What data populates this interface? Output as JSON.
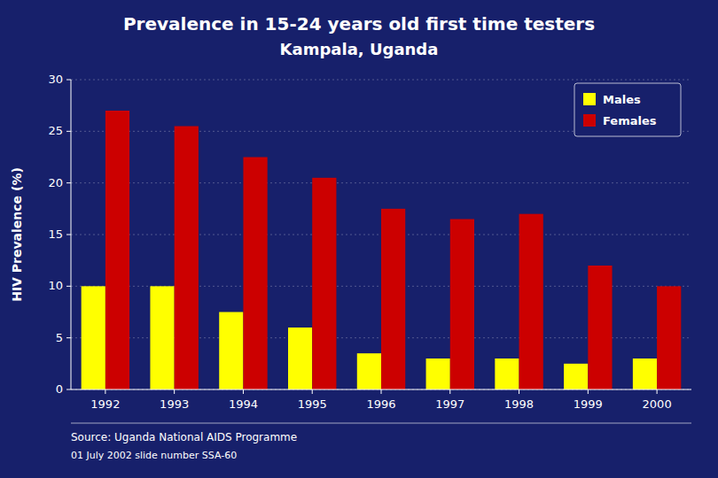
{
  "chart_data": {
    "type": "bar",
    "title": "Prevalence in 15-24 years old first time testers",
    "subtitle": "Kampala, Uganda",
    "ylabel": "HIV Prevalence (%)",
    "categories": [
      "1992",
      "1993",
      "1994",
      "1995",
      "1996",
      "1997",
      "1998",
      "1999",
      "2000"
    ],
    "series": [
      {
        "name": "Males",
        "color": "#FFFF00",
        "values": [
          10.0,
          10.0,
          7.5,
          6.0,
          3.5,
          3.0,
          3.0,
          2.5,
          3.0
        ]
      },
      {
        "name": "Females",
        "color": "#CC0000",
        "values": [
          27.0,
          25.5,
          22.5,
          20.5,
          17.5,
          16.5,
          17.0,
          12.0,
          10.0
        ]
      }
    ],
    "ylim": [
      0,
      30
    ],
    "yticks": [
      0,
      5,
      10,
      15,
      20,
      25,
      30
    ],
    "grid": true,
    "legend": "upper right",
    "annotations": [
      "Source:  Uganda National AIDS Programme",
      "01 July 2002 slide number SSA-60"
    ]
  }
}
